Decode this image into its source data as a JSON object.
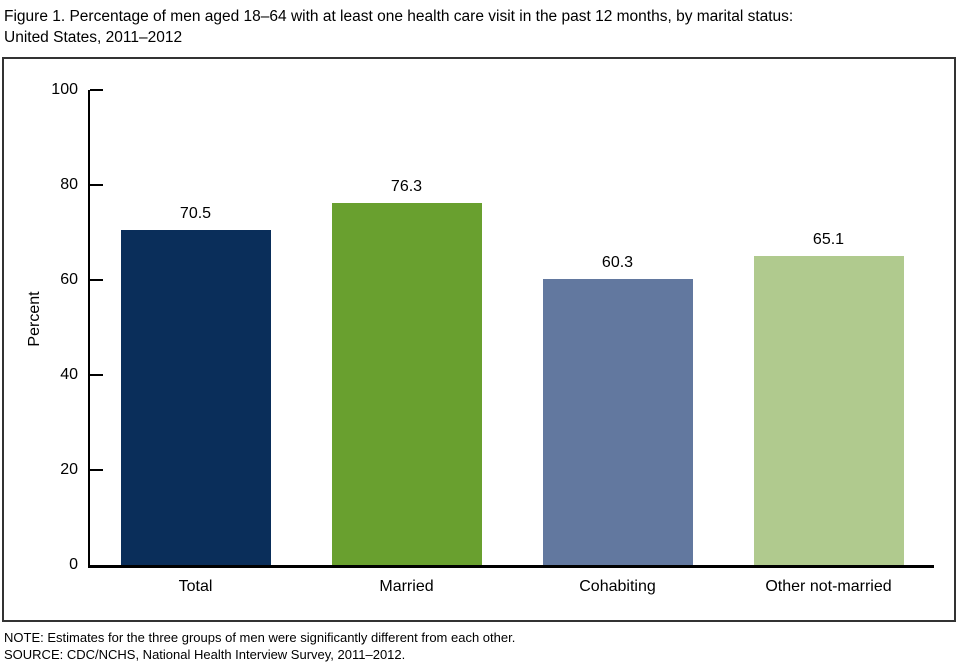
{
  "title": {
    "line1": "Figure 1. Percentage of men aged 18–64 with at least one health care visit in the past 12 months, by marital status:",
    "line2": "United States, 2011–2012"
  },
  "chart_data": {
    "type": "bar",
    "title": "Figure 1. Percentage of men aged 18–64 with at least one health care visit in the past 12 months, by marital status: United States, 2011–2012",
    "categories": [
      "Total",
      "Married",
      "Cohabiting",
      "Other not-married"
    ],
    "values": [
      70.5,
      76.3,
      60.3,
      65.1
    ],
    "data_labels": [
      "70.5",
      "76.3",
      "60.3",
      "65.1"
    ],
    "bar_colors": [
      "#0a2e5a",
      "#69a02f",
      "#62789f",
      "#b0ca8e"
    ],
    "xlabel": "",
    "ylabel": "Percent",
    "ylim": [
      0,
      100
    ],
    "yticks": [
      0,
      20,
      40,
      60,
      80,
      100
    ],
    "grid": false,
    "legend": "none"
  },
  "notes": {
    "note": "NOTE: Estimates for the three groups of men were significantly different from each other.",
    "source": "SOURCE: CDC/NCHS, National Health Interview Survey, 2011–2012."
  }
}
